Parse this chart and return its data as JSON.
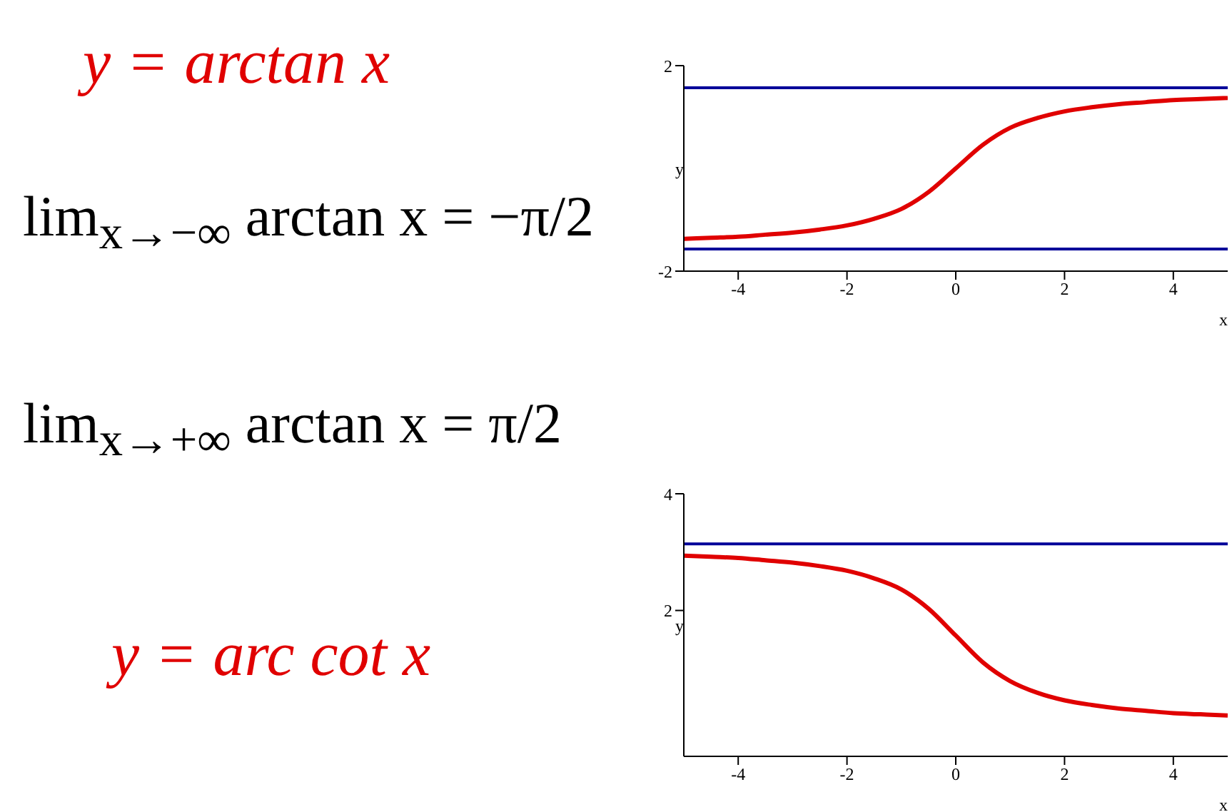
{
  "chart_data": [
    {
      "type": "line",
      "title": "y = arctan x",
      "annotations": [
        "lim$_{x→−∞}$ arctan x = −π/2",
        "lim$_{x→+∞}$ arctan x = π/2"
      ],
      "xlabel": "x",
      "ylabel": "y",
      "x": [
        -5,
        -4.5,
        -4,
        -3.5,
        -3,
        -2.5,
        -2,
        -1.5,
        -1,
        -0.5,
        0,
        0.5,
        1,
        1.5,
        2,
        2.5,
        3,
        3.5,
        4,
        4.5,
        5
      ],
      "series": [
        {
          "color": "#e00000",
          "values": [
            -1.37,
            -1.35,
            -1.33,
            -1.29,
            -1.25,
            -1.19,
            -1.11,
            -0.98,
            -0.79,
            -0.46,
            0,
            0.46,
            0.79,
            0.98,
            1.11,
            1.19,
            1.25,
            1.29,
            1.33,
            1.35,
            1.37
          ]
        }
      ],
      "xlim": [
        -5,
        5
      ],
      "xticks": [
        -4,
        -2,
        0,
        2,
        4
      ],
      "ylim": [
        -2,
        2
      ],
      "yticks": [
        -2,
        2
      ],
      "ref_lines": [
        {
          "axis": "y",
          "value": 1.57,
          "color": "#000099"
        },
        {
          "axis": "y",
          "value": -1.57,
          "color": "#000099"
        }
      ],
      "grid": false,
      "legend": false,
      "marker": "none",
      "line_style": "solid"
    },
    {
      "type": "line",
      "title": "y = arc cot x",
      "xlabel": "x",
      "ylabel": "y",
      "x": [
        -5,
        -4.5,
        -4,
        -3.5,
        -3,
        -2.5,
        -2,
        -1.5,
        -1,
        -0.5,
        0,
        0.5,
        1,
        1.5,
        2,
        2.5,
        3,
        3.5,
        4,
        4.5,
        5
      ],
      "series": [
        {
          "color": "#e00000",
          "values": [
            2.94,
            2.92,
            2.9,
            2.86,
            2.82,
            2.76,
            2.68,
            2.55,
            2.36,
            2.03,
            1.57,
            1.11,
            0.79,
            0.59,
            0.46,
            0.38,
            0.32,
            0.28,
            0.24,
            0.22,
            0.2
          ]
        }
      ],
      "xlim": [
        -5,
        5
      ],
      "xticks": [
        -4,
        -2,
        0,
        2,
        4
      ],
      "ylim": [
        -0.5,
        4
      ],
      "yticks": [
        2,
        4
      ],
      "ref_lines": [
        {
          "axis": "y",
          "value": 3.14,
          "color": "#000099"
        }
      ],
      "grid": false,
      "legend": false,
      "marker": "none",
      "line_style": "solid"
    }
  ]
}
